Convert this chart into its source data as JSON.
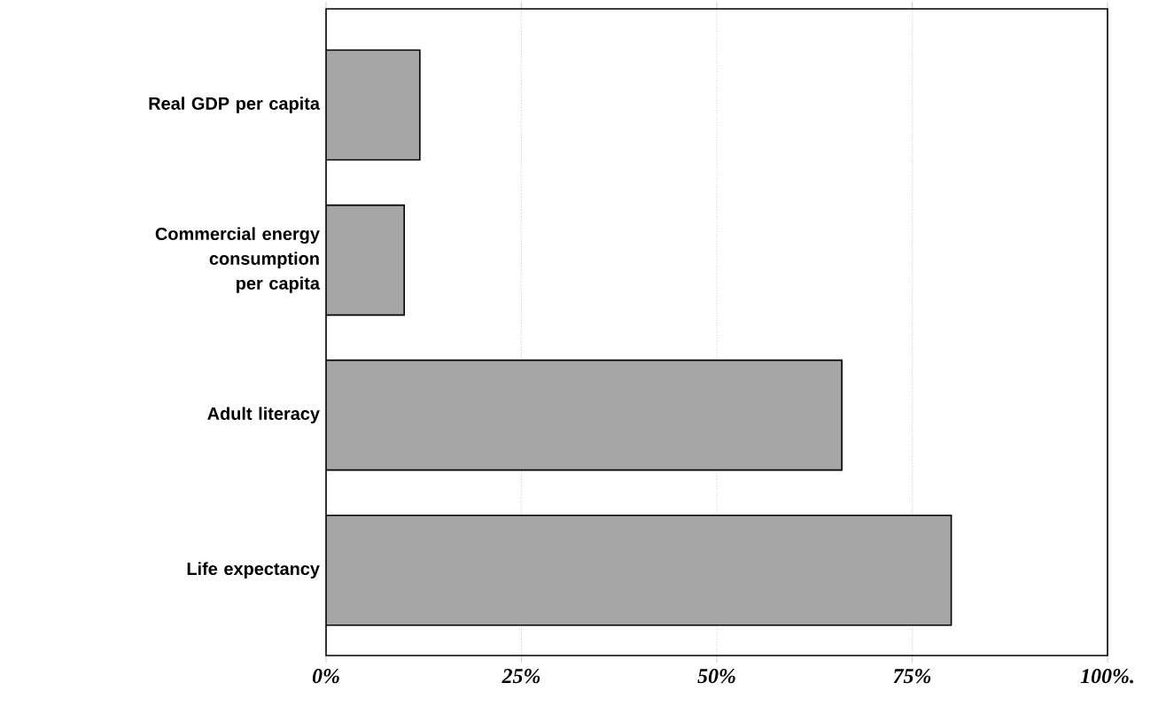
{
  "chart_data": {
    "type": "bar",
    "orientation": "horizontal",
    "categories": [
      "Real GDP per capita",
      "Commercial energy consumption per capita",
      "Adult literacy",
      "Life expectancy"
    ],
    "values": [
      12,
      10,
      66,
      80
    ],
    "color": "#a6a6a6",
    "xlim": [
      0,
      100
    ],
    "xticks": [
      {
        "value": 0,
        "label": "0%"
      },
      {
        "value": 25,
        "label": "25%"
      },
      {
        "value": 50,
        "label": "50%"
      },
      {
        "value": 75,
        "label": "75%"
      },
      {
        "value": 100,
        "label": "100%."
      }
    ],
    "grid": "x"
  }
}
